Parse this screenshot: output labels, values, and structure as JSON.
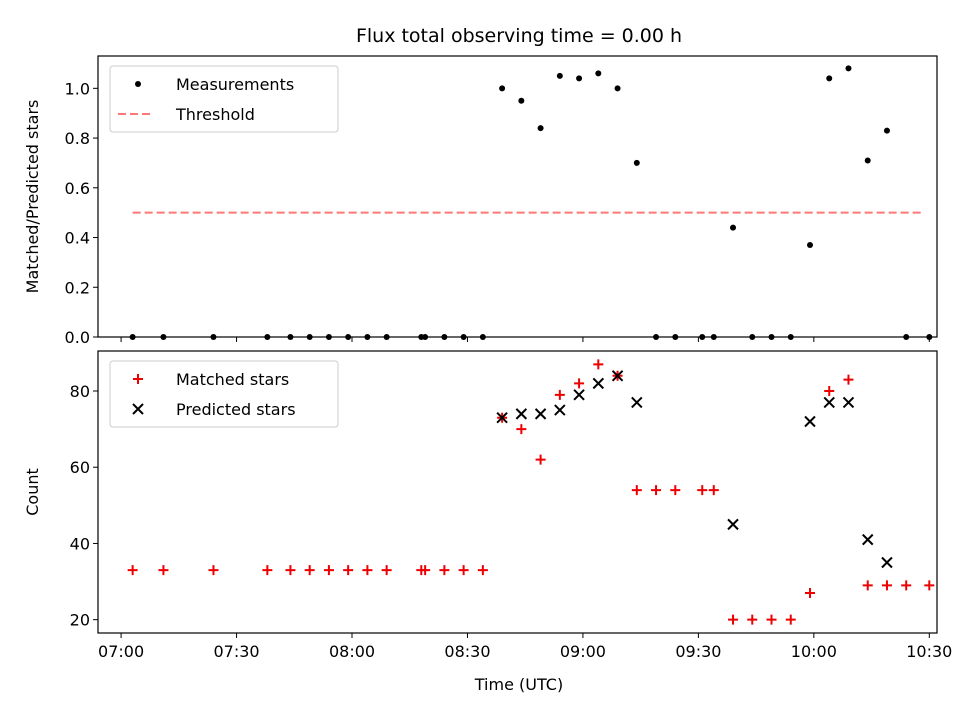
{
  "chart_data": {
    "title": "Flux total observing time = 0.00 h",
    "xlabel": "Time (UTC)",
    "x_ticks": [
      "07:00",
      "07:30",
      "08:00",
      "08:30",
      "09:00",
      "09:30",
      "10:00",
      "10:30"
    ],
    "xlim": [
      "06:54",
      "10:32"
    ],
    "panels": [
      {
        "type": "scatter",
        "ylabel": "Matched/Predicted stars",
        "ylim": [
          0,
          1.13
        ],
        "y_ticks": [
          "0.0",
          "0.2",
          "0.4",
          "0.6",
          "0.8",
          "1.0"
        ],
        "legend_position": "upper-left",
        "series": [
          {
            "name": "Measurements",
            "marker": "dot",
            "color": "#000000",
            "x": [
              "07:03",
              "07:11",
              "07:24",
              "07:38",
              "07:44",
              "07:49",
              "07:54",
              "07:59",
              "08:04",
              "08:09",
              "08:18",
              "08:19",
              "08:24",
              "08:29",
              "08:34",
              "08:39",
              "08:44",
              "08:49",
              "08:54",
              "08:59",
              "09:04",
              "09:09",
              "09:14",
              "09:19",
              "09:24",
              "09:31",
              "09:34",
              "09:39",
              "09:44",
              "09:49",
              "09:54",
              "09:59",
              "10:04",
              "10:09",
              "10:14",
              "10:19",
              "10:24",
              "10:30"
            ],
            "y": [
              0,
              0,
              0,
              0,
              0,
              0,
              0,
              0,
              0,
              0,
              0,
              0,
              0,
              0,
              0,
              1.0,
              0.95,
              0.84,
              1.05,
              1.04,
              1.06,
              1.0,
              0.7,
              0,
              0,
              0,
              0,
              0.44,
              0,
              0,
              0,
              0.37,
              1.04,
              1.08,
              0.71,
              0.83,
              0,
              0
            ]
          },
          {
            "name": "Threshold",
            "marker": "dashed-line",
            "color": "#ff7777",
            "x": [
              "07:03",
              "10:28"
            ],
            "y": [
              0.5,
              0.5
            ]
          }
        ]
      },
      {
        "type": "scatter",
        "ylabel": "Count",
        "ylim": [
          16.5,
          90.5
        ],
        "y_ticks": [
          "20",
          "40",
          "60",
          "80"
        ],
        "legend_position": "upper-left",
        "series": [
          {
            "name": "Matched stars",
            "marker": "plus",
            "color": "#ee0000",
            "x": [
              "07:03",
              "07:11",
              "07:24",
              "07:38",
              "07:44",
              "07:49",
              "07:54",
              "07:59",
              "08:04",
              "08:09",
              "08:18",
              "08:19",
              "08:24",
              "08:29",
              "08:34",
              "08:39",
              "08:44",
              "08:49",
              "08:54",
              "08:59",
              "09:04",
              "09:09",
              "09:14",
              "09:19",
              "09:24",
              "09:31",
              "09:34",
              "09:39",
              "09:44",
              "09:49",
              "09:54",
              "09:59",
              "10:04",
              "10:09",
              "10:14",
              "10:19",
              "10:24",
              "10:30"
            ],
            "y": [
              33,
              33,
              33,
              33,
              33,
              33,
              33,
              33,
              33,
              33,
              33,
              33,
              33,
              33,
              33,
              73,
              70,
              62,
              79,
              82,
              87,
              84,
              54,
              54,
              54,
              54,
              54,
              20,
              20,
              20,
              20,
              27,
              80,
              83,
              29,
              29,
              29,
              29
            ]
          },
          {
            "name": "Predicted stars",
            "marker": "x",
            "color": "#000000",
            "x": [
              "08:39",
              "08:44",
              "08:49",
              "08:54",
              "08:59",
              "09:04",
              "09:09",
              "09:14",
              "09:39",
              "09:59",
              "10:04",
              "10:09",
              "10:14",
              "10:19"
            ],
            "y": [
              73,
              74,
              74,
              75,
              79,
              82,
              84,
              77,
              45,
              72,
              77,
              77,
              41,
              35
            ]
          }
        ]
      }
    ]
  }
}
